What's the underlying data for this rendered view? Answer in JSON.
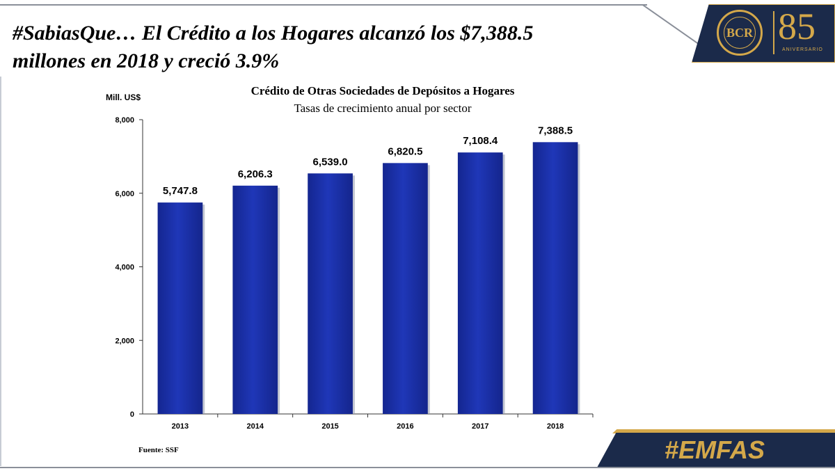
{
  "headline": {
    "line1": "#SabiasQue… El Crédito a los Hogares alcanzó los $7,388.5",
    "line2": "millones en 2018 y creció 3.9%"
  },
  "logo": {
    "initials": "BCR",
    "number": "85",
    "caption": "ANIVERSARIO",
    "ring_text": "BANCO CENTRAL DE RESERVA DE EL SALVADOR"
  },
  "hashtag": "#EMFAS",
  "source": "Fuente: SSF",
  "colors": {
    "bar": "#1f37b8",
    "navy": "#1b2a4a",
    "gold": "#d4a84a"
  },
  "chart_data": {
    "type": "bar",
    "title": "Crédito de Otras Sociedades de Depósitos a Hogares",
    "subtitle": "Tasas de crecimiento anual por sector",
    "ylabel": "Mill. US$",
    "xlabel": "",
    "categories": [
      "2013",
      "2014",
      "2015",
      "2016",
      "2017",
      "2018"
    ],
    "values": [
      5747.8,
      6206.3,
      6539.0,
      6820.5,
      7108.4,
      7388.5
    ],
    "value_labels": [
      "5,747.8",
      "6,206.3",
      "6,539.0",
      "6,820.5",
      "7,108.4",
      "7,388.5"
    ],
    "ylim": [
      0,
      8000
    ],
    "yticks": [
      0,
      2000,
      4000,
      6000,
      8000
    ],
    "ytick_labels": [
      "0",
      "2,000",
      "4,000",
      "6,000",
      "8,000"
    ],
    "grid": false,
    "legend": "none"
  }
}
